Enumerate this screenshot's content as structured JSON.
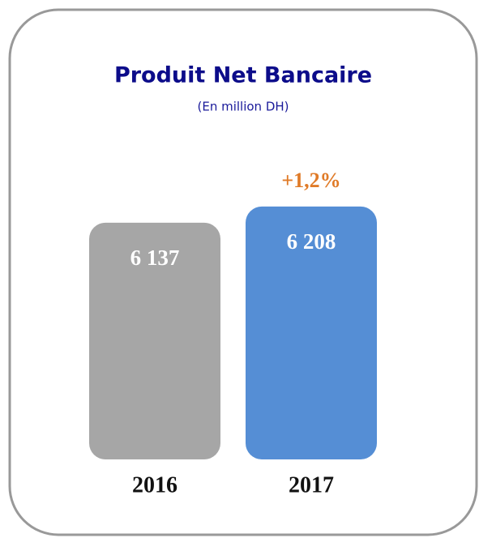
{
  "chart_data": {
    "type": "bar",
    "title": "Produit Net Bancaire",
    "subtitle": "(En million DH)",
    "annotation": "+1,2%",
    "categories": [
      "2016",
      "2017"
    ],
    "values": [
      6137,
      6208
    ],
    "value_labels": [
      "6 137",
      "6 208"
    ],
    "colors": [
      "#a6a6a6",
      "#558ed5"
    ],
    "ylim": [
      5100,
      6300
    ]
  }
}
